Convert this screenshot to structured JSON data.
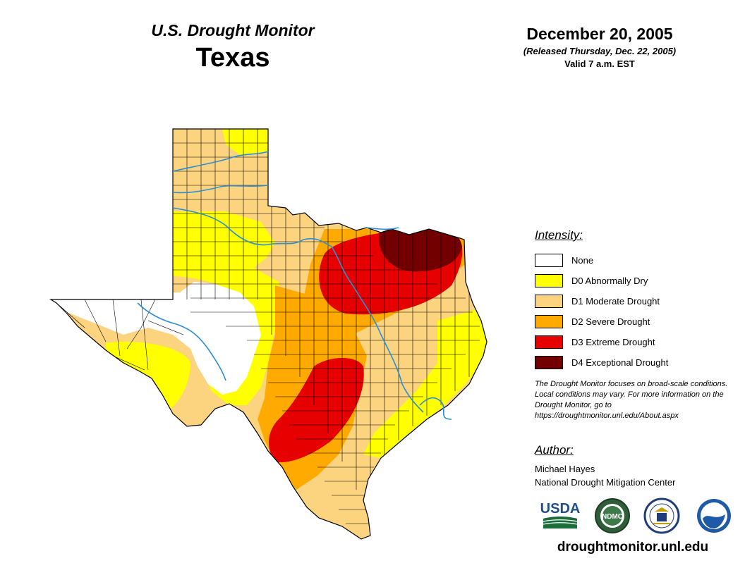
{
  "header": {
    "product_title": "U.S. Drought Monitor",
    "region": "Texas",
    "date": "December 20, 2005",
    "released": "(Released Thursday, Dec. 22, 2005)",
    "valid": "Valid 7 a.m. EST"
  },
  "legend": {
    "heading": "Intensity:",
    "items": [
      {
        "label": "None",
        "color": "#ffffff"
      },
      {
        "label": "D0 Abnormally Dry",
        "color": "#ffff00"
      },
      {
        "label": "D1 Moderate Drought",
        "color": "#fcd37f"
      },
      {
        "label": "D2 Severe Drought",
        "color": "#ffaa00"
      },
      {
        "label": "D3 Extreme Drought",
        "color": "#e60000"
      },
      {
        "label": "D4 Exceptional Drought",
        "color": "#730000"
      }
    ]
  },
  "note": "The Drought Monitor focuses on broad-scale conditions. Local conditions may vary. For more information on the Drought Monitor, go to https://droughtmonitor.unl.edu/About.aspx",
  "author": {
    "heading": "Author:",
    "name": "Michael Hayes",
    "organization": "National Drought Mitigation Center"
  },
  "logos": {
    "usda": "USDA",
    "ndmc": "NDMC",
    "noaa": "NOAA",
    "commerce_icon": "department-of-commerce-seal-icon"
  },
  "website": "droughtmonitor.unl.edu",
  "colors": {
    "river": "#2a8fd6",
    "county_lines": "#000000",
    "usda_green": "#1b6e3a",
    "usda_blue": "#1f4e8c",
    "noaa_blue": "#1f5aa8"
  }
}
